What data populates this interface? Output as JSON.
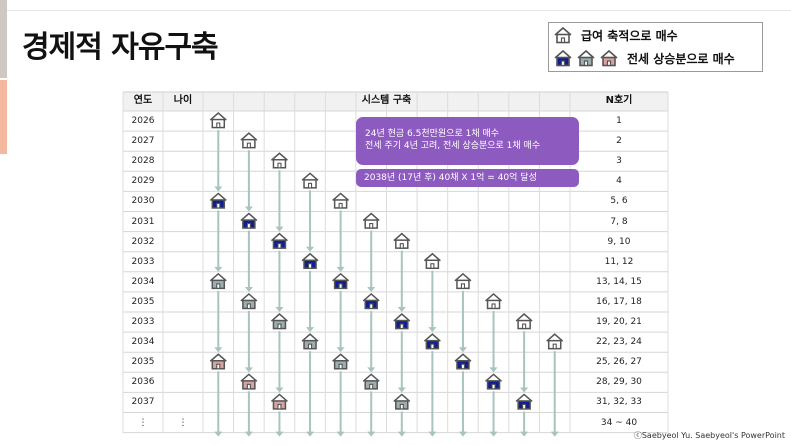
{
  "slide": {
    "title": "경제적 자유구축",
    "copyright": "ⓒSaebyeol Yu. Saebyeol's PowerPoint"
  },
  "legend": {
    "row1_label": "급여 축적으로 매수",
    "row2_label": "전세 상승분으로 매수"
  },
  "table": {
    "headers": {
      "year": "연도",
      "age": "나이",
      "system": "시스템 구축",
      "n": "N호기"
    },
    "rows": [
      {
        "year": "2026",
        "age": "",
        "n": "1"
      },
      {
        "year": "2027",
        "age": "",
        "n": "2"
      },
      {
        "year": "2028",
        "age": "",
        "n": "3"
      },
      {
        "year": "2029",
        "age": "",
        "n": "4"
      },
      {
        "year": "2030",
        "age": "",
        "n": "5, 6"
      },
      {
        "year": "2031",
        "age": "",
        "n": "7, 8"
      },
      {
        "year": "2032",
        "age": "",
        "n": "9, 10"
      },
      {
        "year": "2033",
        "age": "",
        "n": "11, 12"
      },
      {
        "year": "2034",
        "age": "",
        "n": "13, 14, 15"
      },
      {
        "year": "2035",
        "age": "",
        "n": "16, 17, 18"
      },
      {
        "year": "2033",
        "age": "",
        "n": "19, 20, 21"
      },
      {
        "year": "2034",
        "age": "",
        "n": "22, 23, 24"
      },
      {
        "year": "2035",
        "age": "",
        "n": "25, 26, 27"
      },
      {
        "year": "2036",
        "age": "",
        "n": "28, 29, 30"
      },
      {
        "year": "2037",
        "age": "",
        "n": "31, 32, 33"
      },
      {
        "year": "⋮",
        "age": "⋮",
        "n": "34 ~ 40"
      }
    ]
  },
  "callouts": {
    "line1": "24년 현금 6.5천만원으로 1채 매수",
    "line2": "전세 주기 4년 고려, 전세 상승분으로 1채 매수",
    "summary": "2038년 (17년  후) 40채 X 1억 = 40억 달성"
  },
  "colors": {
    "salary_house": "#ffffff",
    "lease_house_navy": "#0f1f8f",
    "lease_house_gray": "#9cafae",
    "lease_house_pink": "#d9a1a1",
    "arrow": "#a8c3c0",
    "callout": "#8d5bbf"
  },
  "house_columns": [
    {
      "start_row": 0,
      "houses": [
        [
          "outline",
          0
        ],
        [
          "navy",
          4
        ],
        [
          "gray",
          8
        ],
        [
          "pink",
          12
        ]
      ]
    },
    {
      "start_row": 1,
      "houses": [
        [
          "outline",
          1
        ],
        [
          "navy",
          5
        ],
        [
          "gray",
          9
        ],
        [
          "pink",
          13
        ]
      ]
    },
    {
      "start_row": 2,
      "houses": [
        [
          "outline",
          2
        ],
        [
          "navy",
          6
        ],
        [
          "gray",
          10
        ],
        [
          "pink",
          14
        ]
      ]
    },
    {
      "start_row": 3,
      "houses": [
        [
          "outline",
          3
        ],
        [
          "navy",
          7
        ],
        [
          "gray",
          11
        ]
      ]
    },
    {
      "start_row": 4,
      "houses": [
        [
          "outline",
          4
        ],
        [
          "navy",
          8
        ],
        [
          "gray",
          12
        ]
      ]
    },
    {
      "start_row": 5,
      "houses": [
        [
          "outline",
          5
        ],
        [
          "navy",
          9
        ],
        [
          "gray",
          13
        ]
      ]
    },
    {
      "start_row": 6,
      "houses": [
        [
          "outline",
          6
        ],
        [
          "navy",
          10
        ],
        [
          "gray",
          14
        ]
      ]
    },
    {
      "start_row": 7,
      "houses": [
        [
          "outline",
          7
        ],
        [
          "navy",
          11
        ]
      ]
    },
    {
      "start_row": 8,
      "houses": [
        [
          "outline",
          8
        ],
        [
          "navy",
          12
        ]
      ]
    },
    {
      "start_row": 9,
      "houses": [
        [
          "outline",
          9
        ],
        [
          "navy",
          13
        ]
      ]
    },
    {
      "start_row": 10,
      "houses": [
        [
          "outline",
          10
        ],
        [
          "navy",
          14
        ]
      ]
    },
    {
      "start_row": 11,
      "houses": [
        [
          "outline",
          11
        ]
      ]
    }
  ]
}
